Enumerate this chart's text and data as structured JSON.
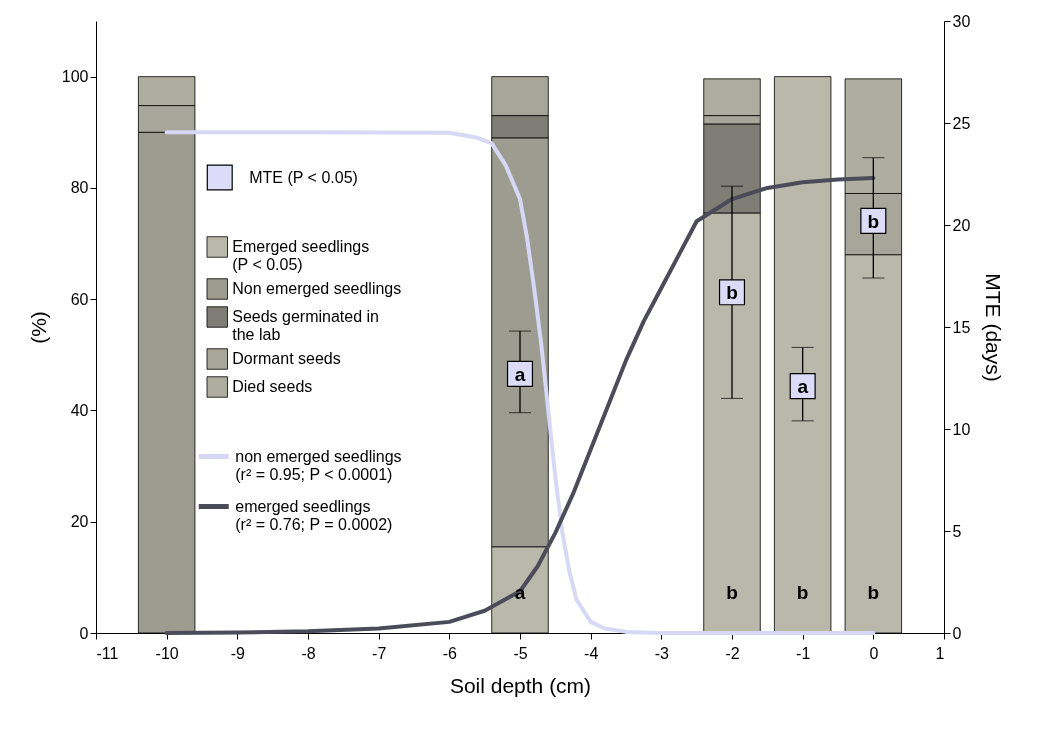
{
  "chart_data": {
    "type": "bar",
    "stacked": true,
    "xlabel": "Soil depth (cm)",
    "ylabel": "(%)",
    "y2label": "MTE (days)",
    "x": [
      -10,
      -5,
      -2,
      -1,
      0
    ],
    "xlim": [
      -11,
      1
    ],
    "xticks": [
      -11,
      -10,
      -9,
      -8,
      -7,
      -6,
      -5,
      -4,
      -3,
      -2,
      -1,
      0,
      1
    ],
    "ylim": [
      0,
      110
    ],
    "yticks": [
      0,
      20,
      40,
      60,
      80,
      100
    ],
    "y2lim": [
      0,
      30
    ],
    "y2ticks": [
      0,
      5,
      10,
      15,
      20,
      25,
      30
    ],
    "grid": false,
    "legend": "left",
    "series": [
      {
        "name": "Emerged seedlings (P < 0.05)",
        "color": "#b9b9ab",
        "values": [
          0,
          15.5,
          75.5,
          100,
          68
        ],
        "value_labels": [
          null,
          "a",
          "b",
          "b",
          "b"
        ]
      },
      {
        "name": "Non emerged seedlings",
        "color": "#9c9c90",
        "values": [
          90,
          73.5,
          0,
          0,
          0
        ]
      },
      {
        "name": "Seeds germinated in the lab",
        "color": "#7e7e76",
        "values": [
          0,
          4,
          16,
          0,
          0
        ]
      },
      {
        "name": "Dormant seeds",
        "color": "#a6a69a",
        "values": [
          4.8,
          7,
          1.5,
          0,
          11
        ]
      },
      {
        "name": "Died seeds",
        "color": "#adada0",
        "values": [
          5.2,
          0,
          6.6,
          0,
          20.6
        ]
      },
      {
        "name": "non emerged seedlings (r² = 0.95; P < 0.0001)",
        "type": "line",
        "color": "#d8d8f6",
        "x": [
          -10,
          -8,
          -6,
          -5.6,
          -5.4,
          -5.2,
          -5.0,
          -4.9,
          -4.8,
          -4.7,
          -4.6,
          -4.5,
          -4.4,
          -4.3,
          -4.2,
          -4.0,
          -3.8,
          -3.5,
          -3,
          -2,
          -1,
          0
        ],
        "values": [
          90,
          90,
          89.9,
          89,
          88,
          84,
          78,
          71,
          62,
          52,
          40,
          28,
          18,
          11,
          6,
          2,
          0.8,
          0.2,
          0,
          0,
          0,
          0
        ]
      },
      {
        "name": "emerged seedlings (r² = 0.76; P = 0.0002)",
        "type": "line",
        "color": "#4b4b5a",
        "x": [
          -10,
          -9,
          -8,
          -7,
          -6,
          -5.5,
          -5,
          -4.75,
          -4.5,
          -4.25,
          -4,
          -3.75,
          -3.5,
          -3.25,
          -3,
          -2.75,
          -2.5,
          -2,
          -1.5,
          -1,
          -0.5,
          0
        ],
        "values": [
          0,
          0.1,
          0.3,
          0.8,
          2,
          4,
          7.5,
          12,
          18,
          25,
          33,
          41,
          49,
          56,
          62,
          68,
          74,
          78,
          80,
          81,
          81.5,
          81.8
        ]
      },
      {
        "name": "MTE (P < 0.05)",
        "type": "scatter",
        "axis": "y2",
        "marker": "square",
        "color": "#dcdcf8",
        "x": [
          -5,
          -2,
          -1,
          0
        ],
        "values": [
          12.7,
          16.7,
          12.1,
          20.2
        ],
        "errors": [
          [
            10.8,
            14.8
          ],
          [
            11.5,
            21.9
          ],
          [
            10.4,
            14.0
          ],
          [
            17.4,
            23.3
          ]
        ],
        "value_labels": [
          "a",
          "b",
          "a",
          "b"
        ]
      }
    ]
  }
}
